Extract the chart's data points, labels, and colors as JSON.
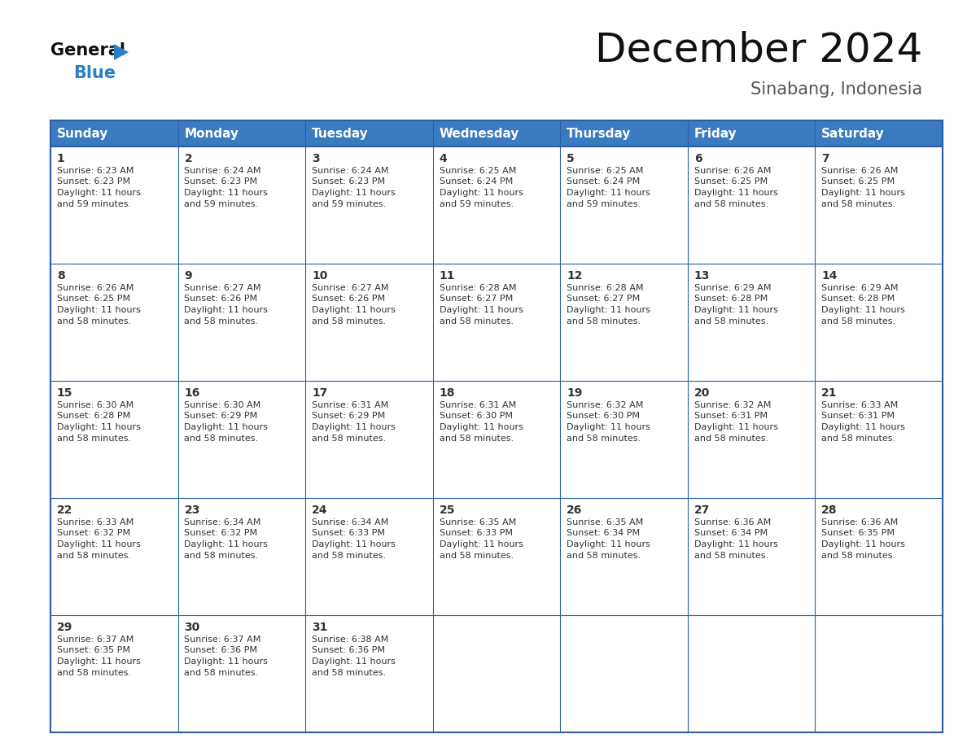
{
  "title": "December 2024",
  "subtitle": "Sinabang, Indonesia",
  "header_color": "#3a7bbf",
  "header_text_color": "#ffffff",
  "border_color": "#2a5fa5",
  "text_color": "#333333",
  "day_num_color": "#222222",
  "days_of_week": [
    "Sunday",
    "Monday",
    "Tuesday",
    "Wednesday",
    "Thursday",
    "Friday",
    "Saturday"
  ],
  "calendar_data": [
    {
      "day": 1,
      "col": 0,
      "row": 0,
      "sunrise": "6:23 AM",
      "sunset": "6:23 PM",
      "daylight_hours": 11,
      "daylight_minutes": 59
    },
    {
      "day": 2,
      "col": 1,
      "row": 0,
      "sunrise": "6:24 AM",
      "sunset": "6:23 PM",
      "daylight_hours": 11,
      "daylight_minutes": 59
    },
    {
      "day": 3,
      "col": 2,
      "row": 0,
      "sunrise": "6:24 AM",
      "sunset": "6:23 PM",
      "daylight_hours": 11,
      "daylight_minutes": 59
    },
    {
      "day": 4,
      "col": 3,
      "row": 0,
      "sunrise": "6:25 AM",
      "sunset": "6:24 PM",
      "daylight_hours": 11,
      "daylight_minutes": 59
    },
    {
      "day": 5,
      "col": 4,
      "row": 0,
      "sunrise": "6:25 AM",
      "sunset": "6:24 PM",
      "daylight_hours": 11,
      "daylight_minutes": 59
    },
    {
      "day": 6,
      "col": 5,
      "row": 0,
      "sunrise": "6:26 AM",
      "sunset": "6:25 PM",
      "daylight_hours": 11,
      "daylight_minutes": 58
    },
    {
      "day": 7,
      "col": 6,
      "row": 0,
      "sunrise": "6:26 AM",
      "sunset": "6:25 PM",
      "daylight_hours": 11,
      "daylight_minutes": 58
    },
    {
      "day": 8,
      "col": 0,
      "row": 1,
      "sunrise": "6:26 AM",
      "sunset": "6:25 PM",
      "daylight_hours": 11,
      "daylight_minutes": 58
    },
    {
      "day": 9,
      "col": 1,
      "row": 1,
      "sunrise": "6:27 AM",
      "sunset": "6:26 PM",
      "daylight_hours": 11,
      "daylight_minutes": 58
    },
    {
      "day": 10,
      "col": 2,
      "row": 1,
      "sunrise": "6:27 AM",
      "sunset": "6:26 PM",
      "daylight_hours": 11,
      "daylight_minutes": 58
    },
    {
      "day": 11,
      "col": 3,
      "row": 1,
      "sunrise": "6:28 AM",
      "sunset": "6:27 PM",
      "daylight_hours": 11,
      "daylight_minutes": 58
    },
    {
      "day": 12,
      "col": 4,
      "row": 1,
      "sunrise": "6:28 AM",
      "sunset": "6:27 PM",
      "daylight_hours": 11,
      "daylight_minutes": 58
    },
    {
      "day": 13,
      "col": 5,
      "row": 1,
      "sunrise": "6:29 AM",
      "sunset": "6:28 PM",
      "daylight_hours": 11,
      "daylight_minutes": 58
    },
    {
      "day": 14,
      "col": 6,
      "row": 1,
      "sunrise": "6:29 AM",
      "sunset": "6:28 PM",
      "daylight_hours": 11,
      "daylight_minutes": 58
    },
    {
      "day": 15,
      "col": 0,
      "row": 2,
      "sunrise": "6:30 AM",
      "sunset": "6:28 PM",
      "daylight_hours": 11,
      "daylight_minutes": 58
    },
    {
      "day": 16,
      "col": 1,
      "row": 2,
      "sunrise": "6:30 AM",
      "sunset": "6:29 PM",
      "daylight_hours": 11,
      "daylight_minutes": 58
    },
    {
      "day": 17,
      "col": 2,
      "row": 2,
      "sunrise": "6:31 AM",
      "sunset": "6:29 PM",
      "daylight_hours": 11,
      "daylight_minutes": 58
    },
    {
      "day": 18,
      "col": 3,
      "row": 2,
      "sunrise": "6:31 AM",
      "sunset": "6:30 PM",
      "daylight_hours": 11,
      "daylight_minutes": 58
    },
    {
      "day": 19,
      "col": 4,
      "row": 2,
      "sunrise": "6:32 AM",
      "sunset": "6:30 PM",
      "daylight_hours": 11,
      "daylight_minutes": 58
    },
    {
      "day": 20,
      "col": 5,
      "row": 2,
      "sunrise": "6:32 AM",
      "sunset": "6:31 PM",
      "daylight_hours": 11,
      "daylight_minutes": 58
    },
    {
      "day": 21,
      "col": 6,
      "row": 2,
      "sunrise": "6:33 AM",
      "sunset": "6:31 PM",
      "daylight_hours": 11,
      "daylight_minutes": 58
    },
    {
      "day": 22,
      "col": 0,
      "row": 3,
      "sunrise": "6:33 AM",
      "sunset": "6:32 PM",
      "daylight_hours": 11,
      "daylight_minutes": 58
    },
    {
      "day": 23,
      "col": 1,
      "row": 3,
      "sunrise": "6:34 AM",
      "sunset": "6:32 PM",
      "daylight_hours": 11,
      "daylight_minutes": 58
    },
    {
      "day": 24,
      "col": 2,
      "row": 3,
      "sunrise": "6:34 AM",
      "sunset": "6:33 PM",
      "daylight_hours": 11,
      "daylight_minutes": 58
    },
    {
      "day": 25,
      "col": 3,
      "row": 3,
      "sunrise": "6:35 AM",
      "sunset": "6:33 PM",
      "daylight_hours": 11,
      "daylight_minutes": 58
    },
    {
      "day": 26,
      "col": 4,
      "row": 3,
      "sunrise": "6:35 AM",
      "sunset": "6:34 PM",
      "daylight_hours": 11,
      "daylight_minutes": 58
    },
    {
      "day": 27,
      "col": 5,
      "row": 3,
      "sunrise": "6:36 AM",
      "sunset": "6:34 PM",
      "daylight_hours": 11,
      "daylight_minutes": 58
    },
    {
      "day": 28,
      "col": 6,
      "row": 3,
      "sunrise": "6:36 AM",
      "sunset": "6:35 PM",
      "daylight_hours": 11,
      "daylight_minutes": 58
    },
    {
      "day": 29,
      "col": 0,
      "row": 4,
      "sunrise": "6:37 AM",
      "sunset": "6:35 PM",
      "daylight_hours": 11,
      "daylight_minutes": 58
    },
    {
      "day": 30,
      "col": 1,
      "row": 4,
      "sunrise": "6:37 AM",
      "sunset": "6:36 PM",
      "daylight_hours": 11,
      "daylight_minutes": 58
    },
    {
      "day": 31,
      "col": 2,
      "row": 4,
      "sunrise": "6:38 AM",
      "sunset": "6:36 PM",
      "daylight_hours": 11,
      "daylight_minutes": 58
    }
  ],
  "logo_general_color": "#111111",
  "logo_blue_color": "#2a7fc9",
  "logo_triangle_color": "#2a7fc9",
  "title_fontsize": 36,
  "subtitle_fontsize": 15,
  "header_fontsize": 11,
  "day_num_fontsize": 10,
  "cell_text_fontsize": 8
}
